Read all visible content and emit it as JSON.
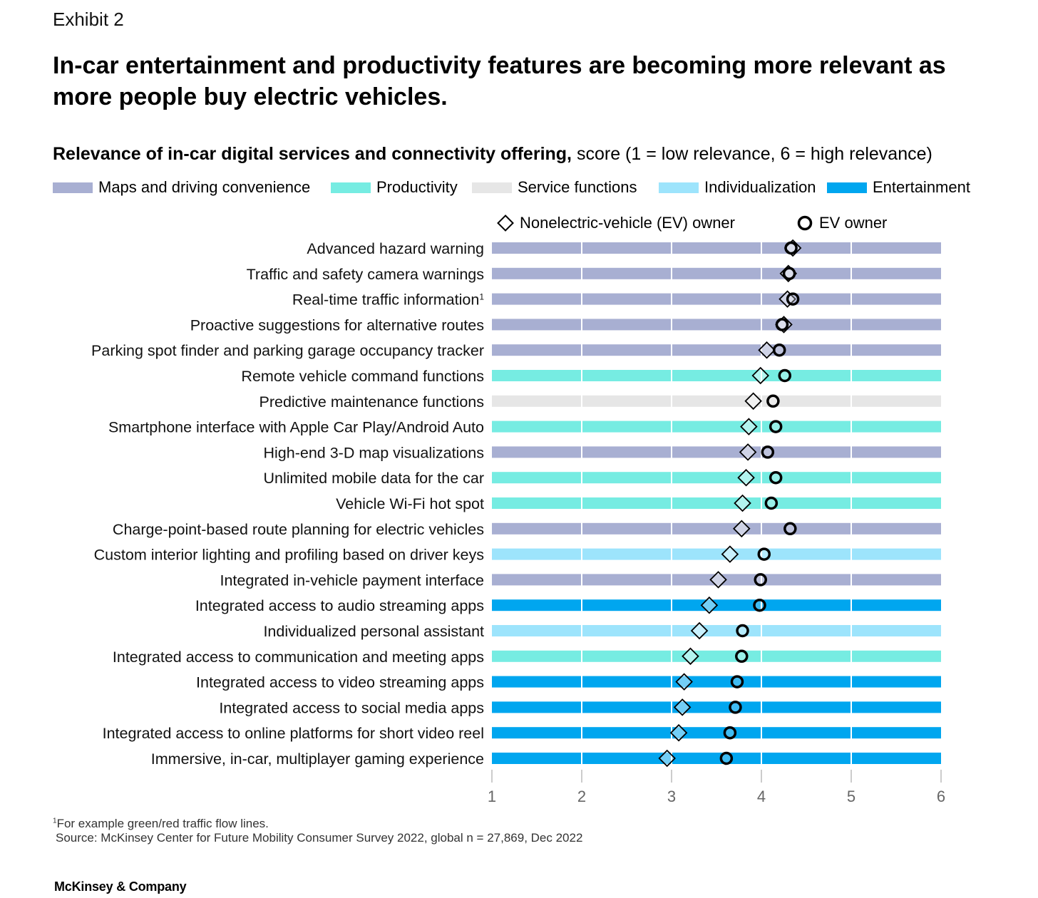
{
  "exhibit": "Exhibit 2",
  "headline": "In-car entertainment and productivity features are becoming more relevant as more people buy electric vehicles.",
  "subtitle_bold": "Relevance of in-car digital services and connectivity offering,",
  "subtitle_rest": " score (1 = low relevance, 6 = high relevance)",
  "legend": [
    {
      "label": "Maps and driving convenience",
      "color": "#a8afd2"
    },
    {
      "label": "Productivity",
      "color": "#76ece2"
    },
    {
      "label": "Service functions",
      "color": "#e6e6e6"
    },
    {
      "label": "Individualization",
      "color": "#9de4fc"
    },
    {
      "label": "Entertainment",
      "color": "#00a6ef"
    }
  ],
  "marker_legend": {
    "nonev": "Nonelectric-vehicle (EV) owner",
    "ev": "EV owner"
  },
  "chart_data": {
    "type": "dot-plot",
    "xlim": [
      1,
      6
    ],
    "ticks": [
      1,
      2,
      3,
      4,
      5,
      6
    ],
    "tick_labels": [
      "1",
      "2",
      "3",
      "4",
      "5",
      "6"
    ],
    "series": [
      {
        "name": "Nonelectric-vehicle (EV) owner",
        "marker": "diamond"
      },
      {
        "name": "EV owner",
        "marker": "circle"
      }
    ],
    "rows": [
      {
        "label": "Advanced hazard warning",
        "category": "Maps and driving convenience",
        "nonev": 4.35,
        "ev": 4.33
      },
      {
        "label": "Traffic and safety camera warnings",
        "category": "Maps and driving convenience",
        "nonev": 4.3,
        "ev": 4.31
      },
      {
        "label": "Real-time traffic information",
        "footnote": "1",
        "category": "Maps and driving convenience",
        "nonev": 4.29,
        "ev": 4.35
      },
      {
        "label": "Proactive suggestions for alternative routes",
        "category": "Maps and driving convenience",
        "nonev": 4.25,
        "ev": 4.23
      },
      {
        "label": "Parking spot finder and parking garage occupancy tracker",
        "category": "Maps and driving convenience",
        "nonev": 4.06,
        "ev": 4.2
      },
      {
        "label": "Remote vehicle command functions",
        "category": "Productivity",
        "nonev": 3.99,
        "ev": 4.26
      },
      {
        "label": "Predictive maintenance functions",
        "category": "Service functions",
        "nonev": 3.91,
        "ev": 4.13
      },
      {
        "label": "Smartphone interface with Apple Car Play/Android Auto",
        "category": "Productivity",
        "nonev": 3.86,
        "ev": 4.16
      },
      {
        "label": "High-end 3-D map visualizations",
        "category": "Maps and driving convenience",
        "nonev": 3.85,
        "ev": 4.07
      },
      {
        "label": "Unlimited mobile data for the car",
        "category": "Productivity",
        "nonev": 3.83,
        "ev": 4.16
      },
      {
        "label": "Vehicle Wi-Fi hot spot",
        "category": "Productivity",
        "nonev": 3.79,
        "ev": 4.11
      },
      {
        "label": "Charge-point-based route planning for electric vehicles",
        "category": "Maps and driving convenience",
        "nonev": 3.78,
        "ev": 4.32
      },
      {
        "label": "Custom interior lighting and profiling based on driver keys",
        "category": "Individualization",
        "nonev": 3.65,
        "ev": 4.03
      },
      {
        "label": "Integrated in-vehicle payment interface",
        "category": "Maps and driving convenience",
        "nonev": 3.52,
        "ev": 3.99
      },
      {
        "label": "Integrated access to audio streaming apps",
        "category": "Entertainment",
        "nonev": 3.42,
        "ev": 3.98
      },
      {
        "label": "Individualized personal assistant",
        "category": "Individualization",
        "nonev": 3.31,
        "ev": 3.79
      },
      {
        "label": "Integrated access to communication and meeting apps",
        "category": "Productivity",
        "nonev": 3.21,
        "ev": 3.78
      },
      {
        "label": "Integrated access to video streaming apps",
        "category": "Entertainment",
        "nonev": 3.14,
        "ev": 3.73
      },
      {
        "label": "Integrated access to social media apps",
        "category": "Entertainment",
        "nonev": 3.12,
        "ev": 3.71
      },
      {
        "label": "Integrated access to online platforms for short video reel",
        "category": "Entertainment",
        "nonev": 3.08,
        "ev": 3.65
      },
      {
        "label": "Immersive, in-car, multiplayer gaming experience",
        "category": "Entertainment",
        "nonev": 2.95,
        "ev": 3.61
      }
    ]
  },
  "footnote_marker": "1",
  "footnote_text": "For example green/red traffic flow lines.",
  "source": "Source: McKinsey Center for Future Mobility Consumer Survey 2022, global n = 27,869, Dec 2022",
  "brand": "McKinsey & Company"
}
